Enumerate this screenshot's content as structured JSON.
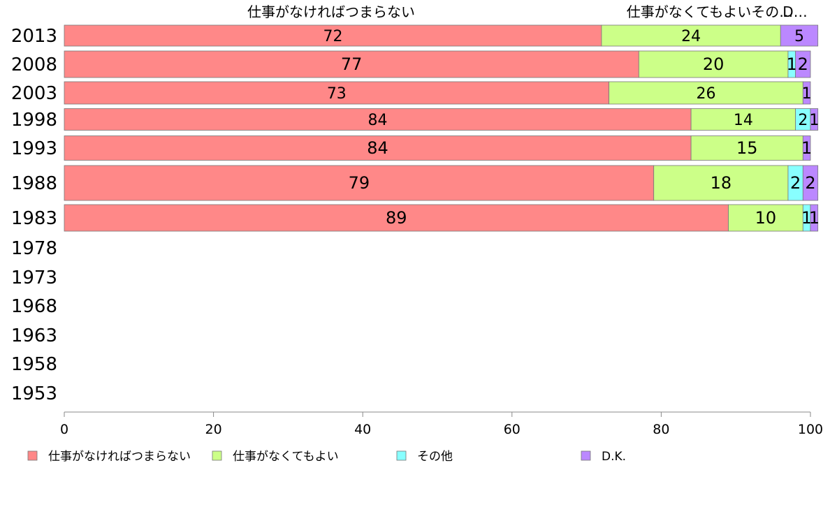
{
  "chart_data": {
    "type": "bar",
    "orientation": "horizontal",
    "stacked": true,
    "categories": [
      "2013",
      "2008",
      "2003",
      "1998",
      "1993",
      "1988",
      "1983",
      "1978",
      "1973",
      "1968",
      "1963",
      "1958",
      "1953"
    ],
    "series": [
      {
        "name": "仕事がなければつまらない",
        "color": "#ff8888",
        "values": [
          72,
          77,
          73,
          84,
          84,
          79,
          89,
          null,
          null,
          null,
          null,
          null,
          null
        ]
      },
      {
        "name": "仕事がなくてもよい",
        "color": "#ccff88",
        "values": [
          24,
          20,
          26,
          14,
          15,
          18,
          10,
          null,
          null,
          null,
          null,
          null,
          null
        ]
      },
      {
        "name": "その他",
        "color": "#88ffff",
        "values": [
          0,
          1,
          0,
          2,
          0,
          2,
          1,
          null,
          null,
          null,
          null,
          null,
          null
        ]
      },
      {
        "name": "D.K.",
        "color": "#bb88ff",
        "values": [
          5,
          2,
          1,
          1,
          1,
          2,
          1,
          null,
          null,
          null,
          null,
          null,
          null
        ]
      }
    ],
    "data_labels": [
      [
        "72",
        "24",
        "",
        "5"
      ],
      [
        "77",
        "20",
        "1",
        "2"
      ],
      [
        "73",
        "26",
        "",
        "1"
      ],
      [
        "84",
        "14",
        "2",
        "1"
      ],
      [
        "84",
        "15",
        "",
        "1"
      ],
      [
        "79",
        "18",
        "2",
        "2"
      ],
      [
        "89",
        "10",
        "1",
        "1"
      ]
    ],
    "top_labels": [
      "仕事がなければつまらない",
      "仕事がなくてもよいその…",
      "D…"
    ],
    "x_ticks": [
      "0",
      "20",
      "40",
      "60",
      "80",
      "100"
    ],
    "xlim": [
      0,
      100
    ],
    "grid": false,
    "legend_position": "bottom",
    "legend": [
      "仕事がなければつまらない",
      "仕事がなくてもよい",
      "その他",
      "D.K."
    ]
  }
}
